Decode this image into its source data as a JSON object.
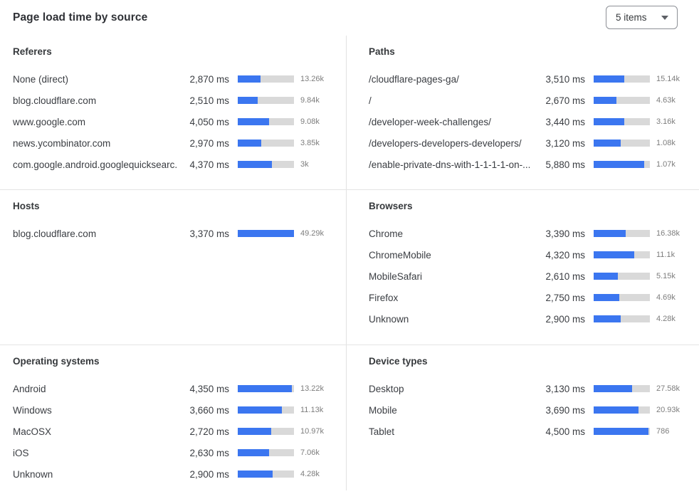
{
  "header": {
    "title": "Page load time by source",
    "items_dropdown": {
      "value": "5 items"
    }
  },
  "colors": {
    "bar_fill": "#3b76f0",
    "bar_track": "#d9d9d9",
    "divider": "#e2e2e2",
    "count_text": "#7d7d7d"
  },
  "sections": [
    {
      "title": "Referers",
      "rows": [
        {
          "label": "None (direct)",
          "ms": "2,870 ms",
          "count": "13.26k",
          "bar_pct": 40
        },
        {
          "label": "blog.cloudflare.com",
          "ms": "2,510 ms",
          "count": "9.84k",
          "bar_pct": 35
        },
        {
          "label": "www.google.com",
          "ms": "4,050 ms",
          "count": "9.08k",
          "bar_pct": 56
        },
        {
          "label": "news.ycombinator.com",
          "ms": "2,970 ms",
          "count": "3.85k",
          "bar_pct": 42
        },
        {
          "label": "com.google.android.googlequicksearc...",
          "ms": "4,370 ms",
          "count": "3k",
          "bar_pct": 61
        }
      ]
    },
    {
      "title": "Paths",
      "rows": [
        {
          "label": "/cloudflare-pages-ga/",
          "ms": "3,510 ms",
          "count": "15.14k",
          "bar_pct": 55
        },
        {
          "label": "/",
          "ms": "2,670 ms",
          "count": "4.63k",
          "bar_pct": 41
        },
        {
          "label": "/developer-week-challenges/",
          "ms": "3,440 ms",
          "count": "3.16k",
          "bar_pct": 54
        },
        {
          "label": "/developers-developers-developers/",
          "ms": "3,120 ms",
          "count": "1.08k",
          "bar_pct": 48
        },
        {
          "label": "/enable-private-dns-with-1-1-1-1-on-...",
          "ms": "5,880 ms",
          "count": "1.07k",
          "bar_pct": 90
        }
      ]
    },
    {
      "title": "Hosts",
      "rows": [
        {
          "label": "blog.cloudflare.com",
          "ms": "3,370 ms",
          "count": "49.29k",
          "bar_pct": 100
        }
      ]
    },
    {
      "title": "Browsers",
      "rows": [
        {
          "label": "Chrome",
          "ms": "3,390 ms",
          "count": "16.38k",
          "bar_pct": 57
        },
        {
          "label": "ChromeMobile",
          "ms": "4,320 ms",
          "count": "11.1k",
          "bar_pct": 72
        },
        {
          "label": "MobileSafari",
          "ms": "2,610 ms",
          "count": "5.15k",
          "bar_pct": 43
        },
        {
          "label": "Firefox",
          "ms": "2,750 ms",
          "count": "4.69k",
          "bar_pct": 46
        },
        {
          "label": "Unknown",
          "ms": "2,900 ms",
          "count": "4.28k",
          "bar_pct": 48
        }
      ]
    },
    {
      "title": "Operating systems",
      "rows": [
        {
          "label": "Android",
          "ms": "4,350 ms",
          "count": "13.22k",
          "bar_pct": 96
        },
        {
          "label": "Windows",
          "ms": "3,660 ms",
          "count": "11.13k",
          "bar_pct": 79
        },
        {
          "label": "MacOSX",
          "ms": "2,720 ms",
          "count": "10.97k",
          "bar_pct": 59
        },
        {
          "label": "iOS",
          "ms": "2,630 ms",
          "count": "7.06k",
          "bar_pct": 56
        },
        {
          "label": "Unknown",
          "ms": "2,900 ms",
          "count": "4.28k",
          "bar_pct": 62
        }
      ]
    },
    {
      "title": "Device types",
      "rows": [
        {
          "label": "Desktop",
          "ms": "3,130 ms",
          "count": "27.58k",
          "bar_pct": 68
        },
        {
          "label": "Mobile",
          "ms": "3,690 ms",
          "count": "20.93k",
          "bar_pct": 80
        },
        {
          "label": "Tablet",
          "ms": "4,500 ms",
          "count": "786",
          "bar_pct": 97
        }
      ]
    }
  ],
  "chart_data": [
    {
      "type": "bar",
      "title": "Referers",
      "categories": [
        "None (direct)",
        "blog.cloudflare.com",
        "www.google.com",
        "news.ycombinator.com",
        "com.google.android.googlequicksearc..."
      ],
      "series": [
        {
          "name": "page_load_time_ms",
          "values": [
            2870,
            2510,
            4050,
            2970,
            4370
          ]
        },
        {
          "name": "count",
          "values": [
            13260,
            9840,
            9080,
            3850,
            3000
          ]
        }
      ],
      "xlabel": "",
      "ylabel": "ms",
      "legend": false,
      "grid": false
    },
    {
      "type": "bar",
      "title": "Paths",
      "categories": [
        "/cloudflare-pages-ga/",
        "/",
        "/developer-week-challenges/",
        "/developers-developers-developers/",
        "/enable-private-dns-with-1-1-1-1-on-..."
      ],
      "series": [
        {
          "name": "page_load_time_ms",
          "values": [
            3510,
            2670,
            3440,
            3120,
            5880
          ]
        },
        {
          "name": "count",
          "values": [
            15140,
            4630,
            3160,
            1080,
            1070
          ]
        }
      ],
      "xlabel": "",
      "ylabel": "ms",
      "legend": false,
      "grid": false
    },
    {
      "type": "bar",
      "title": "Hosts",
      "categories": [
        "blog.cloudflare.com"
      ],
      "series": [
        {
          "name": "page_load_time_ms",
          "values": [
            3370
          ]
        },
        {
          "name": "count",
          "values": [
            49290
          ]
        }
      ],
      "xlabel": "",
      "ylabel": "ms",
      "legend": false,
      "grid": false
    },
    {
      "type": "bar",
      "title": "Browsers",
      "categories": [
        "Chrome",
        "ChromeMobile",
        "MobileSafari",
        "Firefox",
        "Unknown"
      ],
      "series": [
        {
          "name": "page_load_time_ms",
          "values": [
            3390,
            4320,
            2610,
            2750,
            2900
          ]
        },
        {
          "name": "count",
          "values": [
            16380,
            11100,
            5150,
            4690,
            4280
          ]
        }
      ],
      "xlabel": "",
      "ylabel": "ms",
      "legend": false,
      "grid": false
    },
    {
      "type": "bar",
      "title": "Operating systems",
      "categories": [
        "Android",
        "Windows",
        "MacOSX",
        "iOS",
        "Unknown"
      ],
      "series": [
        {
          "name": "page_load_time_ms",
          "values": [
            4350,
            3660,
            2720,
            2630,
            2900
          ]
        },
        {
          "name": "count",
          "values": [
            13220,
            11130,
            10970,
            7060,
            4280
          ]
        }
      ],
      "xlabel": "",
      "ylabel": "ms",
      "legend": false,
      "grid": false
    },
    {
      "type": "bar",
      "title": "Device types",
      "categories": [
        "Desktop",
        "Mobile",
        "Tablet"
      ],
      "series": [
        {
          "name": "page_load_time_ms",
          "values": [
            3130,
            3690,
            4500
          ]
        },
        {
          "name": "count",
          "values": [
            27580,
            20930,
            786
          ]
        }
      ],
      "xlabel": "",
      "ylabel": "ms",
      "legend": false,
      "grid": false
    }
  ]
}
